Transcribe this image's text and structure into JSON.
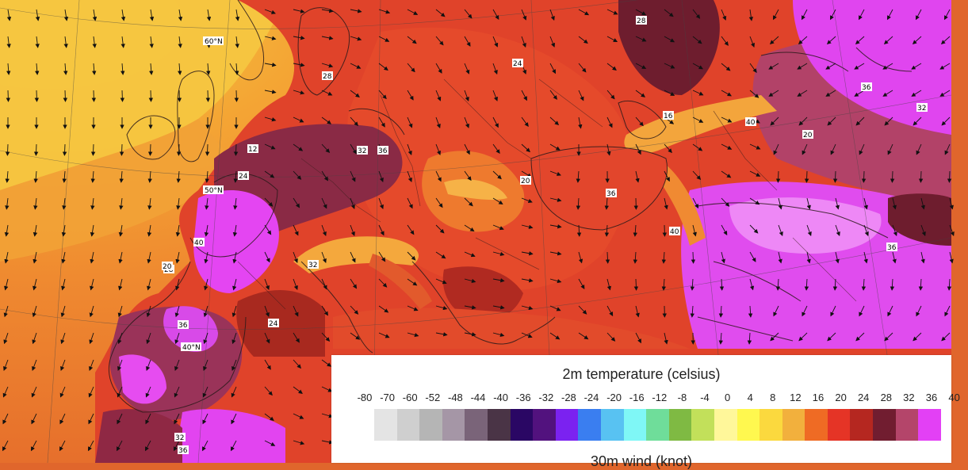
{
  "map": {
    "temperature_labels": [
      "12",
      "16",
      "20",
      "24",
      "28",
      "32",
      "36",
      "40"
    ],
    "graticule_labels": [
      "60°N",
      "50°N",
      "40°N"
    ]
  },
  "legend": {
    "title": "2m temperature (celsius)",
    "subtitle_partial": "30m wind (knot)",
    "ticks": [
      "-80",
      "-70",
      "-60",
      "-52",
      "-48",
      "-44",
      "-40",
      "-36",
      "-32",
      "-28",
      "-24",
      "-20",
      "-16",
      "-12",
      "-8",
      "-4",
      "0",
      "4",
      "8",
      "12",
      "16",
      "20",
      "24",
      "28",
      "32",
      "36",
      "40"
    ],
    "colors": [
      "#e4e4e4",
      "#cfcfcf",
      "#b5b5b5",
      "#a596a6",
      "#7a6479",
      "#4a3446",
      "#2a0764",
      "#52127e",
      "#7b22f0",
      "#3a7ef0",
      "#58c2f2",
      "#7ff7f6",
      "#6fdd9a",
      "#7fba43",
      "#c2e05a",
      "#fff79a",
      "#fff84f",
      "#fbd93e",
      "#f2b03d",
      "#ef6b24",
      "#e53426",
      "#b52720",
      "#711d30",
      "#b4456a",
      "#e340f5"
    ]
  }
}
